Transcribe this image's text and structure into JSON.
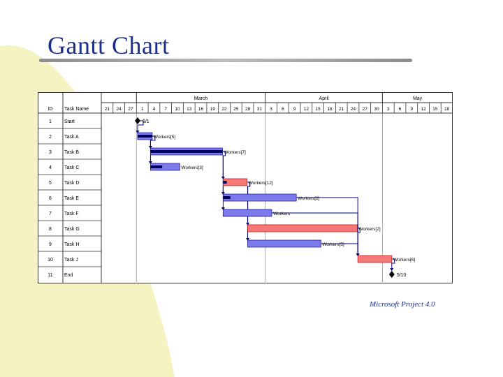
{
  "slide": {
    "title": "Gantt Chart",
    "credit": "Microsoft Project 4.0"
  },
  "colors": {
    "title": "#1a2f8a",
    "swoosh": "#f5f3c1",
    "bar_blue": "#7b7bec",
    "bar_red": "#f47878",
    "progress": "#000060",
    "link": "#00007a"
  },
  "chart_data": {
    "type": "gantt",
    "columns": {
      "id": "ID",
      "name": "Task Name"
    },
    "months": [
      "March",
      "April",
      "May"
    ],
    "weeks": [
      "21",
      "24",
      "27",
      "1",
      "4",
      "7",
      "10",
      "13",
      "16",
      "19",
      "22",
      "25",
      "28",
      "31",
      "3",
      "6",
      "9",
      "12",
      "15",
      "18",
      "21",
      "24",
      "27",
      "30",
      "3",
      "6",
      "9",
      "12",
      "15",
      "18"
    ],
    "tasks": [
      {
        "id": "1",
        "name": "Start",
        "type": "milestone",
        "at": 3.1,
        "label": "3/1"
      },
      {
        "id": "2",
        "name": "Task A",
        "type": "bar",
        "start": 3.1,
        "end": 4.35,
        "color": "blue",
        "progress": 1.0,
        "label": "Workers[5]"
      },
      {
        "id": "3",
        "name": "Task B",
        "type": "bar",
        "start": 4.2,
        "end": 10.35,
        "color": "blue",
        "progress": 1.0,
        "label": "Workers[7]"
      },
      {
        "id": "4",
        "name": "Task C",
        "type": "bar",
        "start": 4.2,
        "end": 6.7,
        "color": "blue",
        "progress": 0.4,
        "label": "Workers[3]"
      },
      {
        "id": "5",
        "name": "Task D",
        "type": "bar",
        "start": 10.4,
        "end": 12.45,
        "color": "red",
        "progress": 0.15,
        "label": "Workers[12]"
      },
      {
        "id": "6",
        "name": "Task E",
        "type": "bar",
        "start": 10.4,
        "end": 16.65,
        "color": "blue",
        "progress": 0.1,
        "label": "Workers[2]"
      },
      {
        "id": "7",
        "name": "Task F",
        "type": "bar",
        "start": 10.4,
        "end": 14.55,
        "color": "blue",
        "progress": 0,
        "label": "Workers"
      },
      {
        "id": "8",
        "name": "Task G",
        "type": "bar",
        "start": 12.5,
        "end": 21.85,
        "color": "red",
        "progress": 0,
        "label": "Workers[2]"
      },
      {
        "id": "9",
        "name": "Task H",
        "type": "bar",
        "start": 12.5,
        "end": 18.75,
        "color": "blue",
        "progress": 0,
        "label": "Workers[5]"
      },
      {
        "id": "10",
        "name": "Task J",
        "type": "bar",
        "start": 21.9,
        "end": 24.8,
        "color": "red",
        "progress": 0,
        "label": "Workers[6]"
      },
      {
        "id": "11",
        "name": "End",
        "type": "milestone",
        "at": 24.8,
        "label": "5/10"
      }
    ],
    "links": [
      {
        "from": "1",
        "to": "2"
      },
      {
        "from": "2",
        "to": "3"
      },
      {
        "from": "2",
        "to": "4"
      },
      {
        "from": "3",
        "to": "5"
      },
      {
        "from": "3",
        "to": "6"
      },
      {
        "from": "3",
        "to": "7"
      },
      {
        "from": "5",
        "to": "8"
      },
      {
        "from": "5",
        "to": "9"
      },
      {
        "from": "6",
        "to": "10"
      },
      {
        "from": "7",
        "to": "10"
      },
      {
        "from": "8",
        "to": "10"
      },
      {
        "from": "9",
        "to": "10"
      },
      {
        "from": "10",
        "to": "11"
      }
    ]
  }
}
